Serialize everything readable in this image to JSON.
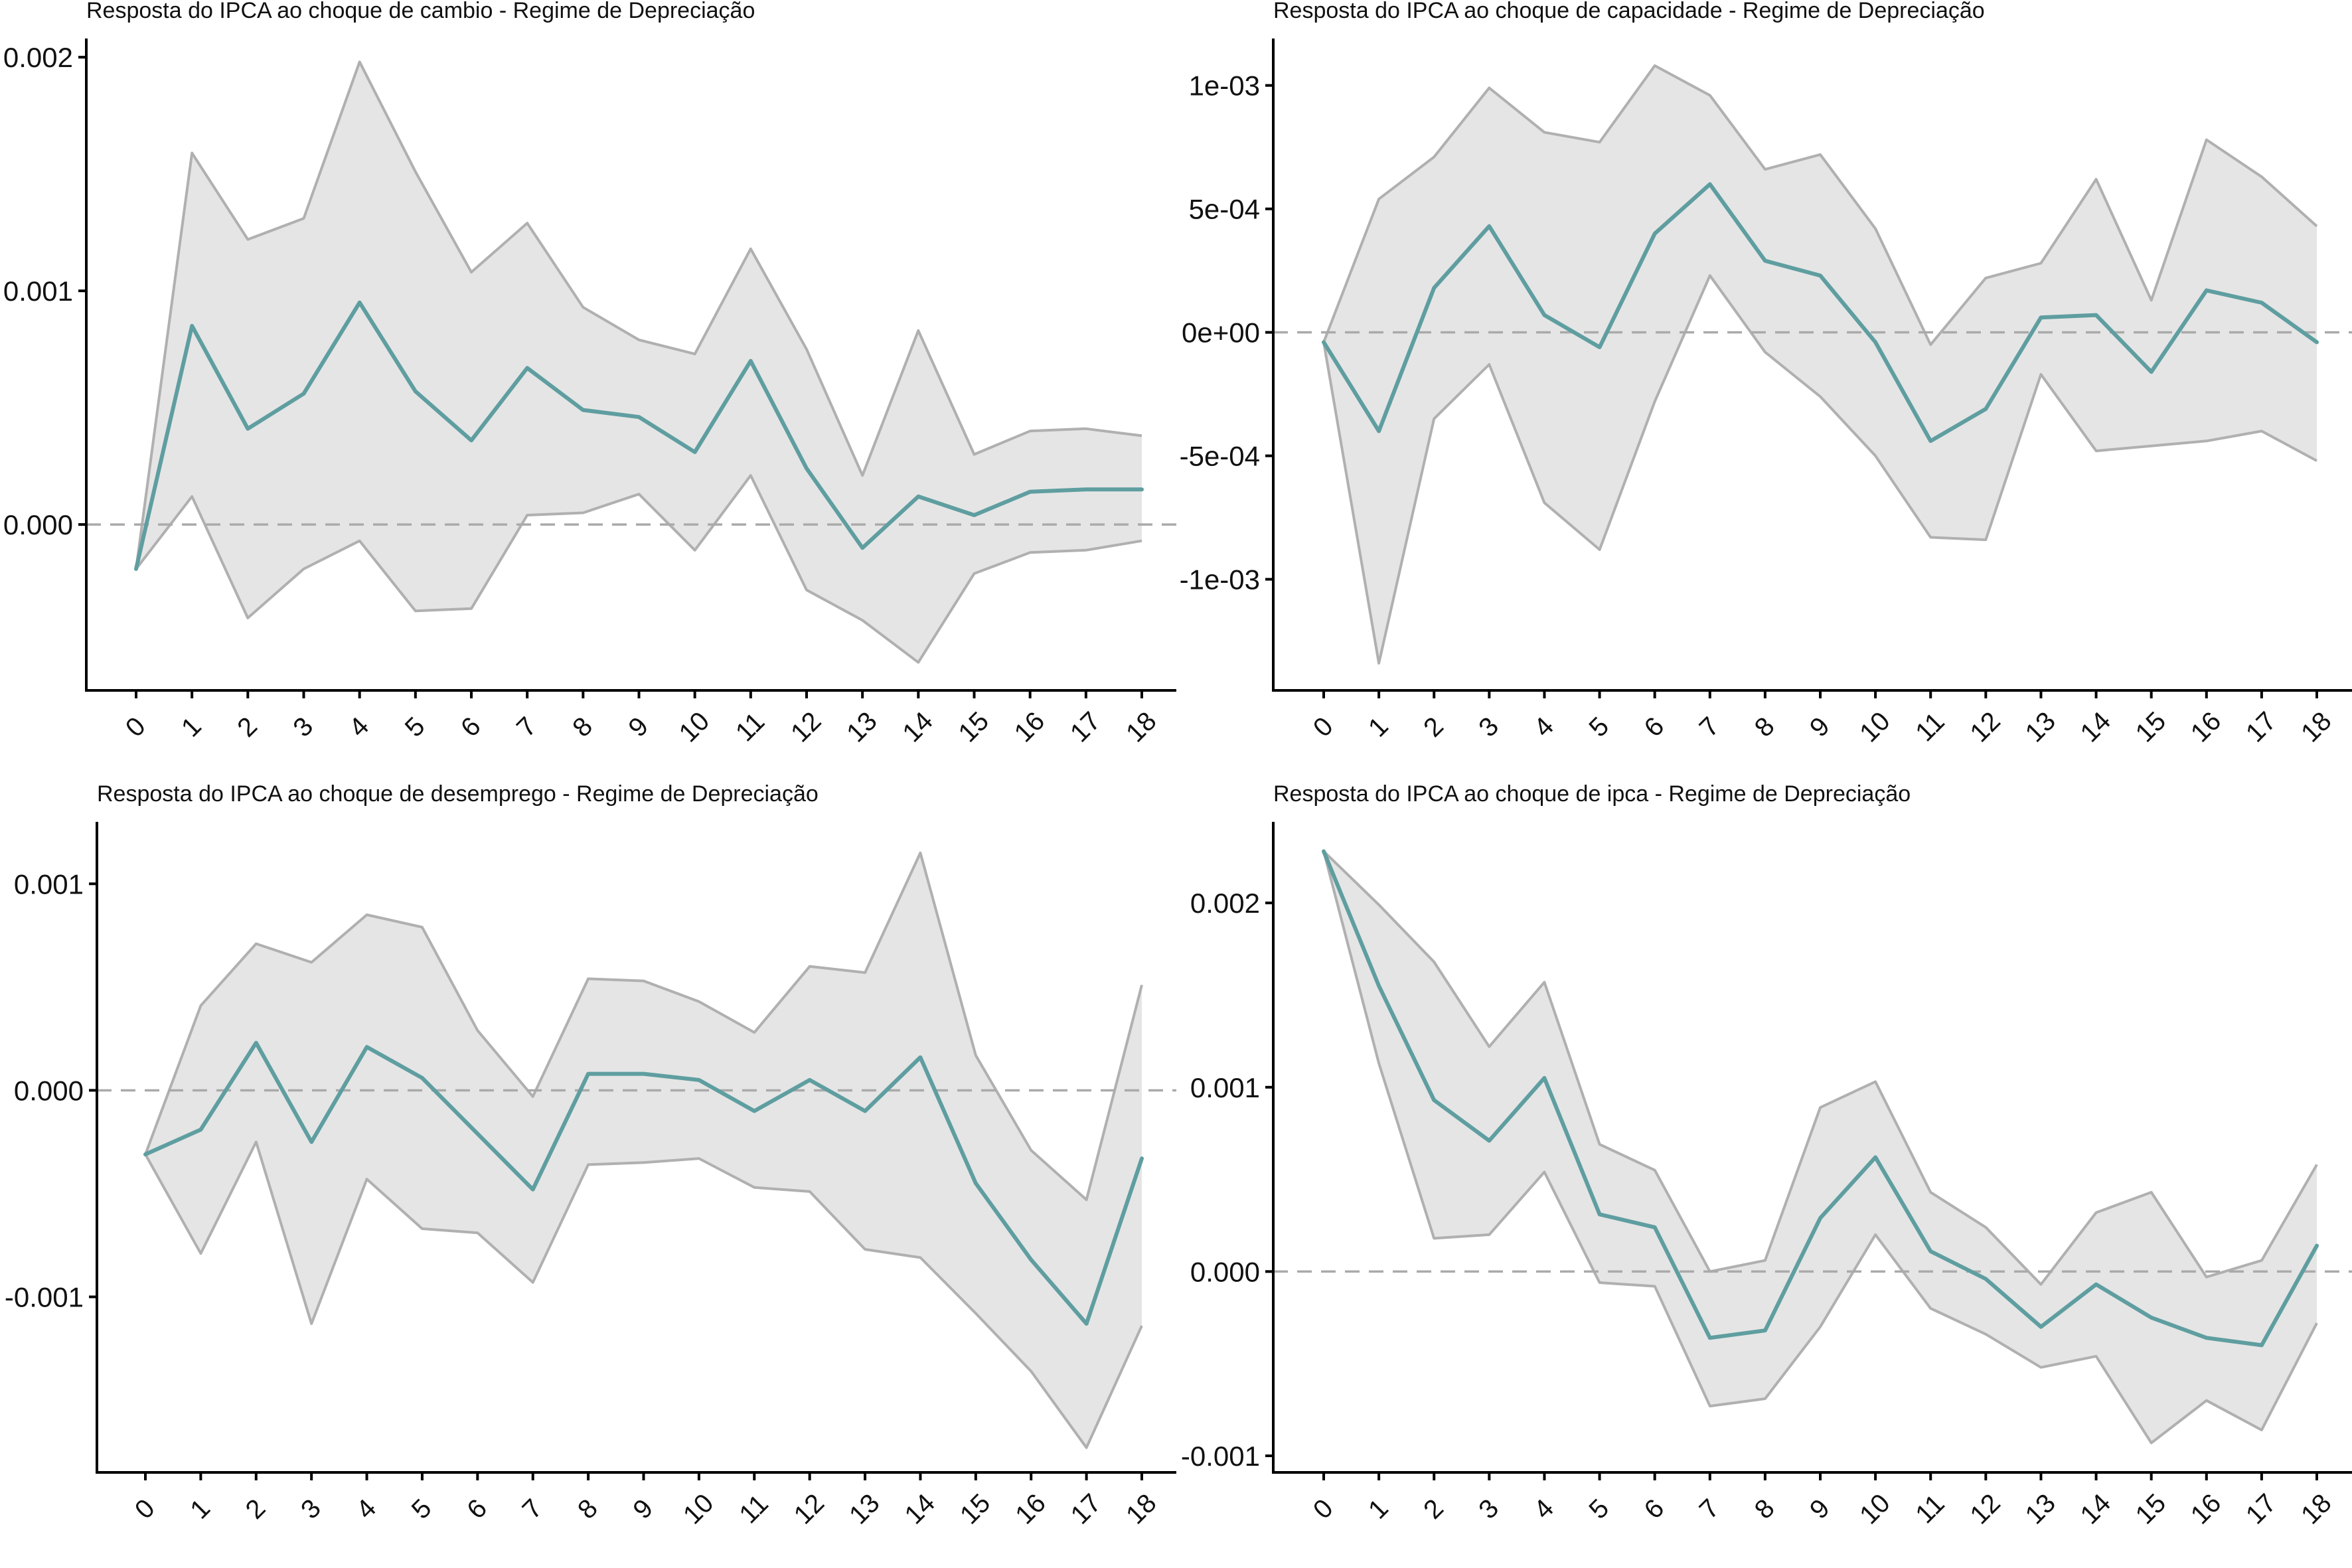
{
  "colors": {
    "line": "#5f9ea0",
    "band_fill": "#e5e5e5",
    "band_edge": "#b0b0b0",
    "zero_line": "#aaaaaa",
    "axis": "#000000",
    "text": "#111111"
  },
  "chart_data": [
    {
      "type": "line",
      "title": "Resposta do IPCA ao choque de cambio -  Regime de Depreciação",
      "xlabel": "",
      "ylabel": "",
      "x": [
        0,
        1,
        2,
        3,
        4,
        5,
        6,
        7,
        8,
        9,
        10,
        11,
        12,
        13,
        14,
        15,
        16,
        17,
        18
      ],
      "ylim": [
        -0.00071,
        0.00208
      ],
      "yticks": [
        0.0,
        0.001,
        0.002
      ],
      "ytick_labels": [
        "0.000",
        "0.001",
        "0.002"
      ],
      "grid": false,
      "zero_line": true,
      "series": [
        {
          "role": "response",
          "values": [
            -0.00019,
            0.00085,
            0.00041,
            0.00056,
            0.00095,
            0.00057,
            0.00036,
            0.00067,
            0.00049,
            0.00046,
            0.00031,
            0.0007,
            0.00024,
            -0.0001,
            0.00012,
            4e-05,
            0.00014,
            0.00015,
            0.00015
          ]
        },
        {
          "role": "upper",
          "values": [
            -0.00019,
            0.00159,
            0.00122,
            0.00131,
            0.00198,
            0.00151,
            0.00108,
            0.00129,
            0.00093,
            0.00079,
            0.00073,
            0.00118,
            0.00075,
            0.00021,
            0.00083,
            0.0003,
            0.0004,
            0.00041,
            0.00038
          ]
        },
        {
          "role": "lower",
          "values": [
            -0.00019,
            0.00012,
            -0.0004,
            -0.00019,
            -7e-05,
            -0.00037,
            -0.00036,
            4e-05,
            5e-05,
            0.00013,
            -0.00011,
            0.00021,
            -0.00028,
            -0.00041,
            -0.00059,
            -0.00021,
            -0.00012,
            -0.00011,
            -7e-05
          ]
        }
      ]
    },
    {
      "type": "line",
      "title": "Resposta do IPCA ao choque de capacidade -  Regime de Depreciação",
      "xlabel": "",
      "ylabel": "",
      "x": [
        0,
        1,
        2,
        3,
        4,
        5,
        6,
        7,
        8,
        9,
        10,
        11,
        12,
        13,
        14,
        15,
        16,
        17,
        18
      ],
      "ylim": [
        -0.00145,
        0.00119
      ],
      "yticks": [
        -0.001,
        -0.0005,
        0.0,
        0.0005,
        0.001
      ],
      "ytick_labels": [
        "-1e-03",
        "-5e-04",
        "0e+00",
        "5e-04",
        "1e-03"
      ],
      "grid": false,
      "zero_line": true,
      "series": [
        {
          "role": "response",
          "values": [
            -4e-05,
            -0.0004,
            0.00018,
            0.00043,
            7e-05,
            -6e-05,
            0.0004,
            0.0006,
            0.00029,
            0.00023,
            -4e-05,
            -0.00044,
            -0.00031,
            6e-05,
            7e-05,
            -0.00016,
            0.00017,
            0.00012,
            -4e-05
          ]
        },
        {
          "role": "upper",
          "values": [
            -4e-05,
            0.00054,
            0.00071,
            0.00099,
            0.00081,
            0.00077,
            0.00108,
            0.00096,
            0.00066,
            0.00072,
            0.00042,
            -5e-05,
            0.00022,
            0.00028,
            0.00062,
            0.00013,
            0.00078,
            0.00063,
            0.00043
          ]
        },
        {
          "role": "lower",
          "values": [
            -4e-05,
            -0.00134,
            -0.00035,
            -0.00013,
            -0.00069,
            -0.00088,
            -0.00028,
            0.00023,
            -8e-05,
            -0.00026,
            -0.0005,
            -0.00083,
            -0.00084,
            -0.00017,
            -0.00048,
            -0.00046,
            -0.00044,
            -0.0004,
            -0.00052
          ]
        }
      ]
    },
    {
      "type": "line",
      "title": "Resposta do IPCA ao choque de desemprego -  Regime de Depreciação",
      "xlabel": "",
      "ylabel": "",
      "x": [
        0,
        1,
        2,
        3,
        4,
        5,
        6,
        7,
        8,
        9,
        10,
        11,
        12,
        13,
        14,
        15,
        16,
        17,
        18
      ],
      "ylim": [
        -0.00185,
        0.0013
      ],
      "yticks": [
        -0.001,
        0.0,
        0.001
      ],
      "ytick_labels": [
        "-0.001",
        "0.000",
        "0.001"
      ],
      "grid": false,
      "zero_line": true,
      "series": [
        {
          "role": "response",
          "values": [
            -0.00031,
            -0.00019,
            0.00023,
            -0.00025,
            0.00021,
            6e-05,
            -0.00021,
            -0.00048,
            8e-05,
            8e-05,
            5e-05,
            -0.0001,
            5e-05,
            -0.0001,
            0.00016,
            -0.00045,
            -0.00082,
            -0.00113,
            -0.00033
          ]
        },
        {
          "role": "upper",
          "values": [
            -0.00031,
            0.00041,
            0.00071,
            0.00062,
            0.00085,
            0.00079,
            0.00029,
            -3e-05,
            0.00054,
            0.00053,
            0.00043,
            0.00028,
            0.0006,
            0.00057,
            0.00115,
            0.00017,
            -0.00029,
            -0.00053,
            0.00051
          ]
        },
        {
          "role": "lower",
          "values": [
            -0.00031,
            -0.00079,
            -0.00025,
            -0.00113,
            -0.00043,
            -0.00067,
            -0.00069,
            -0.00093,
            -0.00036,
            -0.00035,
            -0.00033,
            -0.00047,
            -0.00049,
            -0.00077,
            -0.00081,
            -0.00108,
            -0.00136,
            -0.00173,
            -0.00114
          ]
        }
      ]
    },
    {
      "type": "line",
      "title": "Resposta do IPCA ao choque de ipca -  Regime de Depreciação",
      "xlabel": "",
      "ylabel": "",
      "x": [
        0,
        1,
        2,
        3,
        4,
        5,
        6,
        7,
        8,
        9,
        10,
        11,
        12,
        13,
        14,
        15,
        16,
        17,
        18
      ],
      "ylim": [
        -0.00109,
        0.00244
      ],
      "yticks": [
        -0.001,
        0.0,
        0.001,
        0.002
      ],
      "ytick_labels": [
        "-0.001",
        "0.000",
        "0.001",
        "0.002"
      ],
      "grid": false,
      "zero_line": true,
      "series": [
        {
          "role": "response",
          "values": [
            0.00228,
            0.00155,
            0.00093,
            0.00071,
            0.00105,
            0.00031,
            0.00024,
            -0.00036,
            -0.00032,
            0.00029,
            0.00062,
            0.00011,
            -4e-05,
            -0.0003,
            -7e-05,
            -0.00025,
            -0.00036,
            -0.0004,
            0.00014
          ]
        },
        {
          "role": "upper",
          "values": [
            0.00228,
            0.00199,
            0.00168,
            0.00122,
            0.00157,
            0.00069,
            0.00055,
            0.0,
            6e-05,
            0.00089,
            0.00103,
            0.00043,
            0.00024,
            -7e-05,
            0.00032,
            0.00043,
            -3e-05,
            6e-05,
            0.00058
          ]
        },
        {
          "role": "lower",
          "values": [
            0.00228,
            0.00113,
            0.00018,
            0.0002,
            0.00054,
            -6e-05,
            -8e-05,
            -0.00073,
            -0.00069,
            -0.0003,
            0.0002,
            -0.0002,
            -0.00034,
            -0.00052,
            -0.00046,
            -0.00093,
            -0.0007,
            -0.00086,
            -0.00028
          ]
        }
      ]
    }
  ]
}
